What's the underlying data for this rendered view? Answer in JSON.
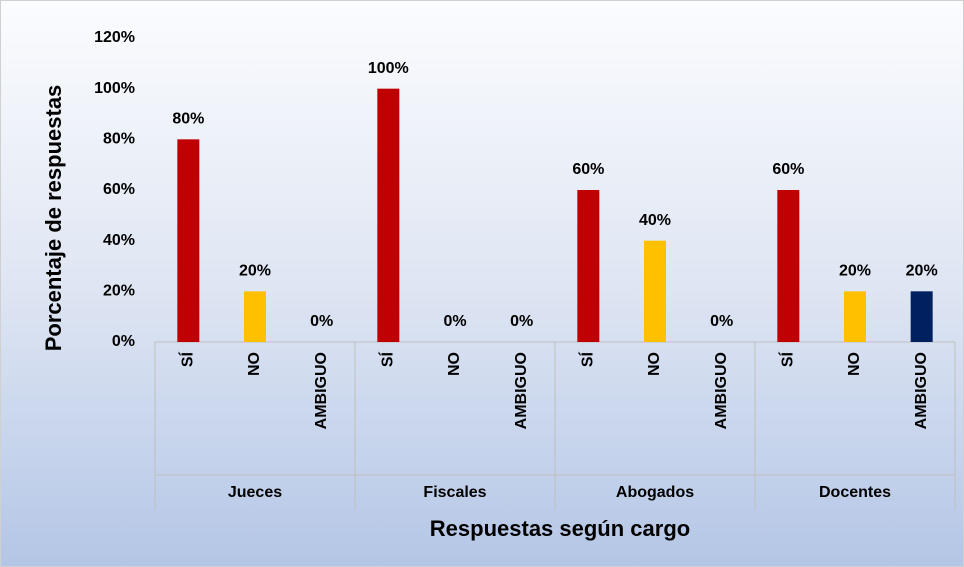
{
  "chart_data": {
    "type": "bar",
    "x_label": "Respuestas según cargo",
    "y_label": "Porcentaje de respuestas",
    "categories": [
      "Jueces",
      "Fiscales",
      "Abogados",
      "Docentes"
    ],
    "series": [
      {
        "name": "SÍ",
        "color": "#c00000",
        "values": [
          80,
          100,
          60,
          60
        ],
        "value_labels": [
          "80%",
          "100%",
          "60%",
          "60%"
        ]
      },
      {
        "name": "NO",
        "color": "#ffc000",
        "values": [
          20,
          0,
          40,
          20
        ],
        "value_labels": [
          "20%",
          "0%",
          "40%",
          "20%"
        ]
      },
      {
        "name": "AMBIGUO",
        "color": "#002060",
        "values": [
          0,
          0,
          0,
          20
        ],
        "value_labels": [
          "0%",
          "0%",
          "0%",
          "20%"
        ]
      }
    ],
    "ylim": [
      0,
      120
    ],
    "yticks": [
      {
        "value": 0,
        "label": "0%"
      },
      {
        "value": 20,
        "label": "20%"
      },
      {
        "value": 40,
        "label": "40%"
      },
      {
        "value": 60,
        "label": "60%"
      },
      {
        "value": 80,
        "label": "80%"
      },
      {
        "value": 100,
        "label": "100%"
      },
      {
        "value": 120,
        "label": "120%"
      }
    ],
    "grid": false
  }
}
